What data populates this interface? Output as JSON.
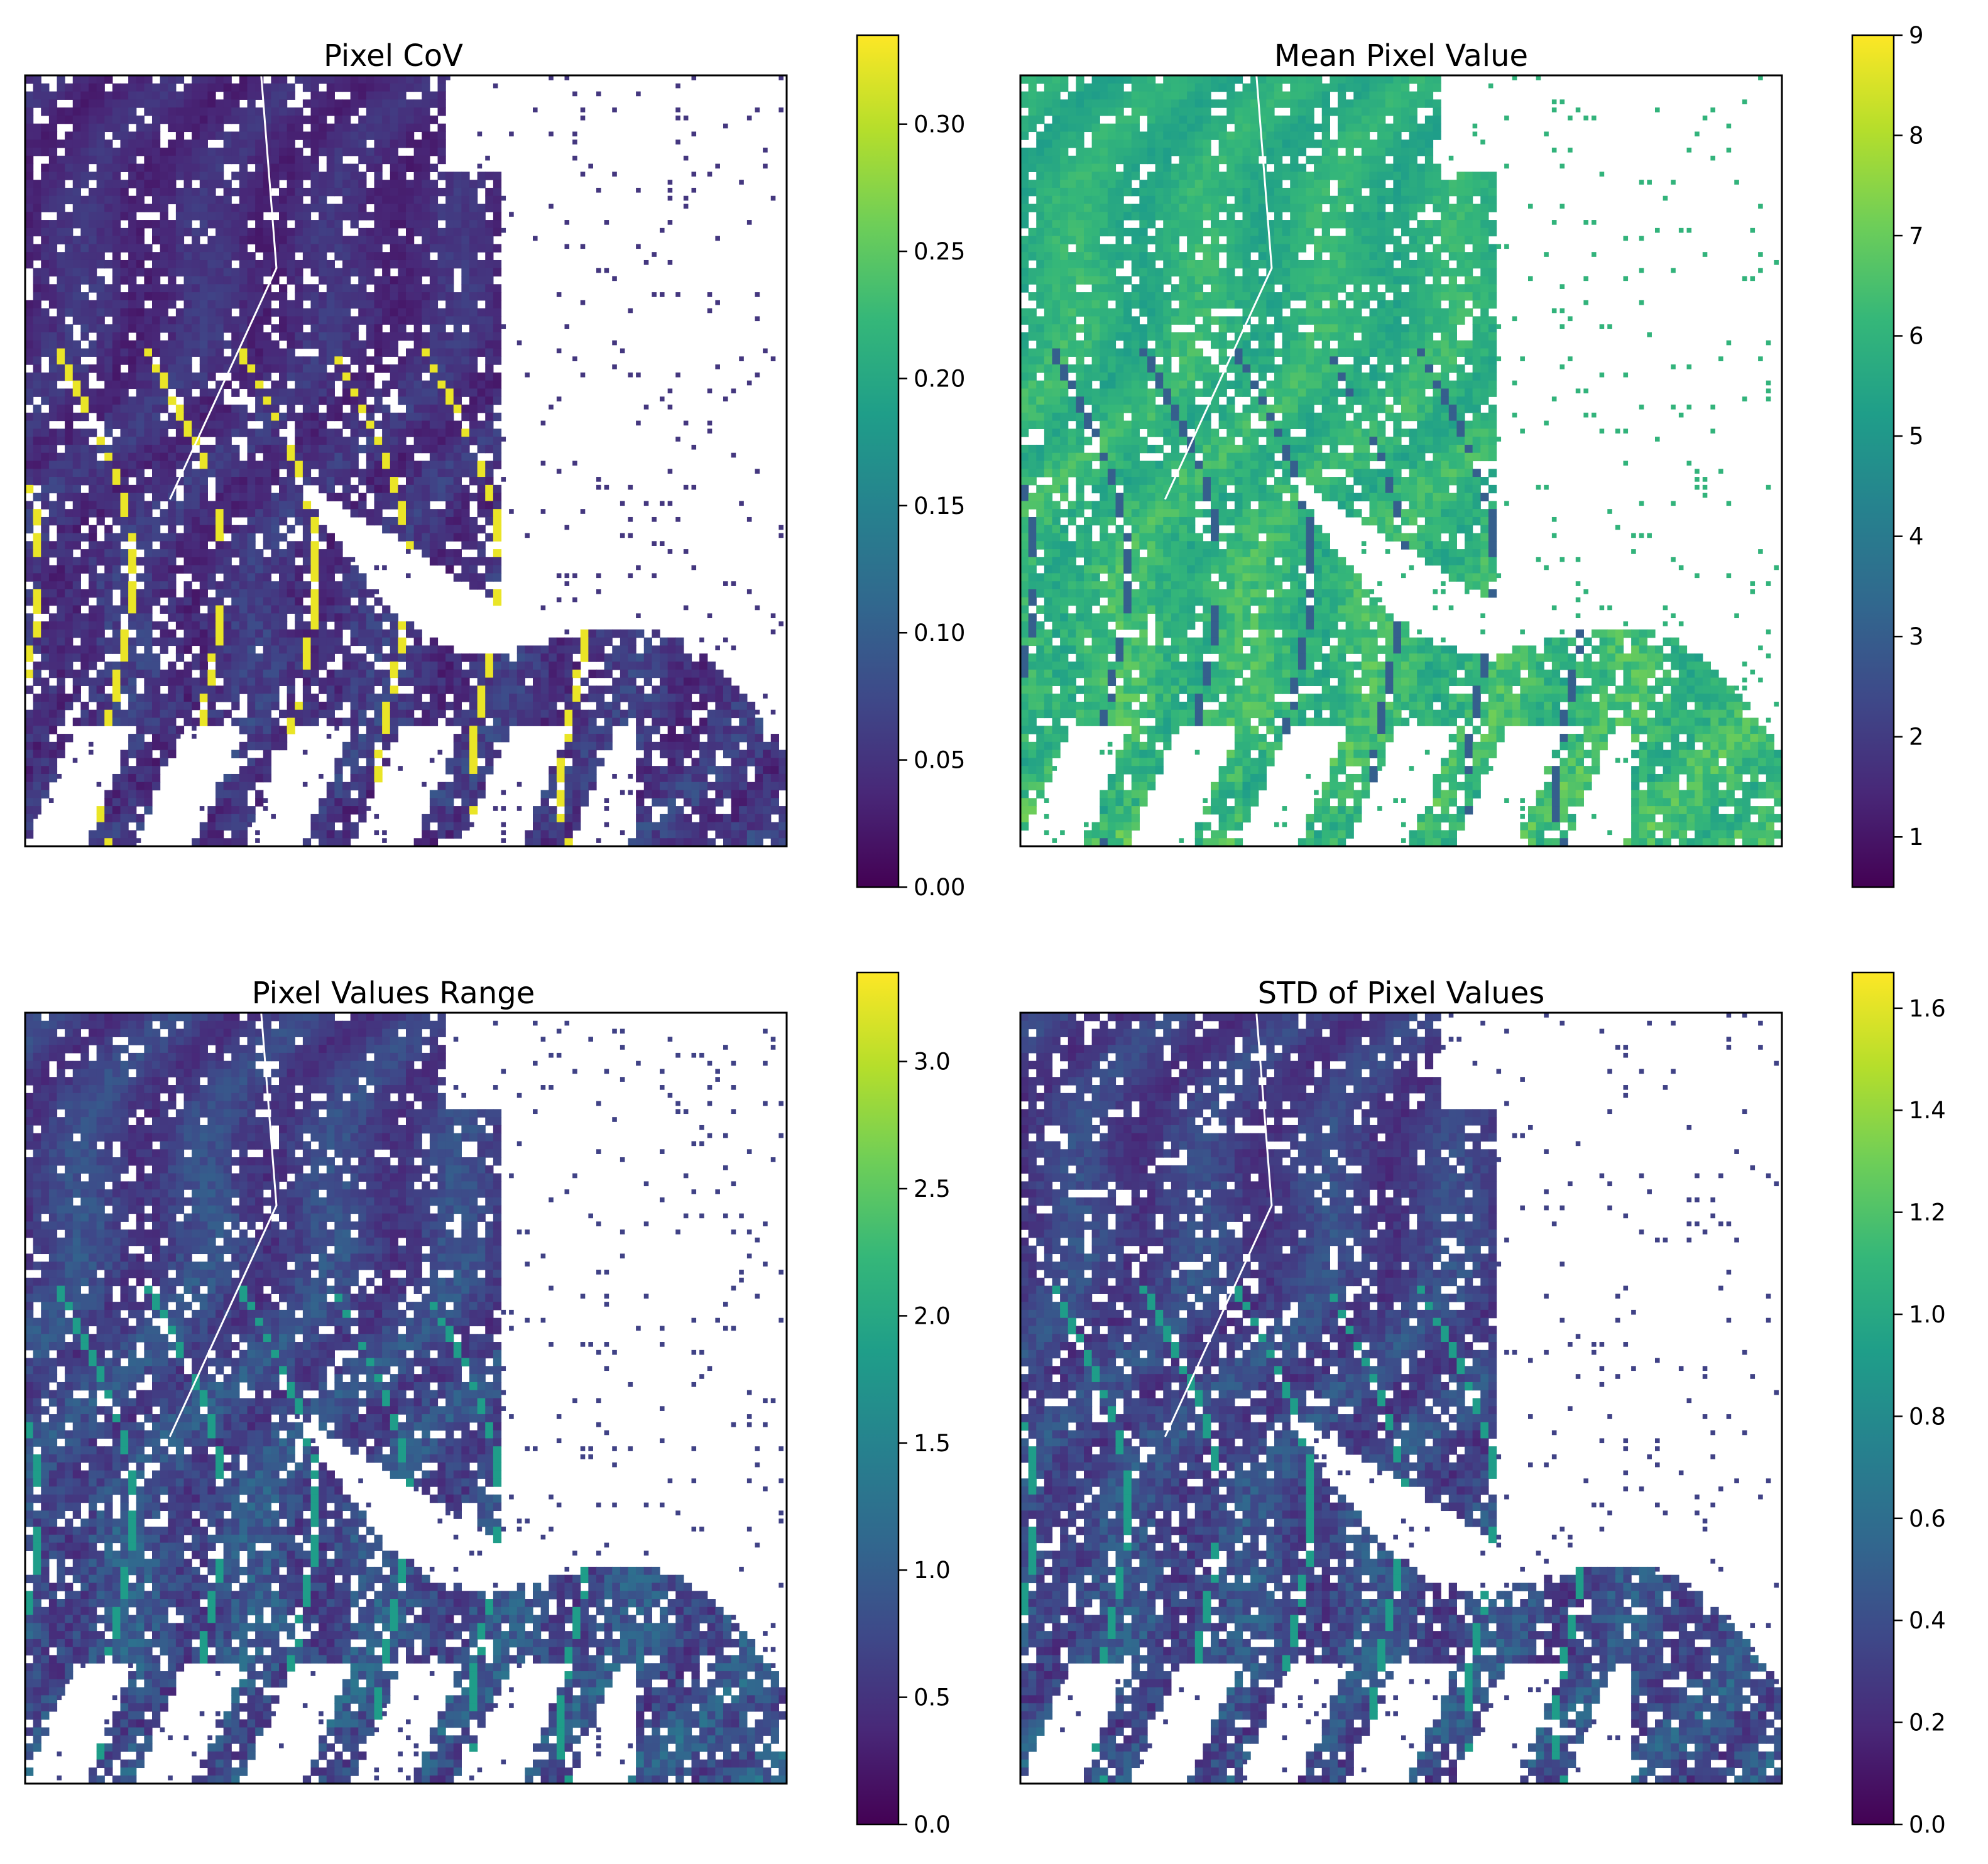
{
  "colormap": {
    "name": "viridis",
    "stops": [
      "#440154",
      "#482878",
      "#3e4989",
      "#31688e",
      "#26828e",
      "#1f9e89",
      "#35b779",
      "#6ece58",
      "#b5de2b",
      "#fde725"
    ]
  },
  "map_colors": {
    "nodata": "#ffffff",
    "frame": "#000000"
  },
  "chart_data": [
    {
      "type": "heatmap",
      "title": "Pixel CoV",
      "colorbar": {
        "vmin": 0.0,
        "vmax": 0.335,
        "ticks": [
          0.0,
          0.05,
          0.1,
          0.15,
          0.2,
          0.25,
          0.3
        ],
        "tick_labels": [
          "0.00",
          "0.05",
          "0.10",
          "0.15",
          "0.20",
          "0.25",
          "0.30"
        ]
      },
      "xticks": [],
      "yticks": []
    },
    {
      "type": "heatmap",
      "title": "Mean Pixel Value",
      "colorbar": {
        "vmin": 0.5,
        "vmax": 9.0,
        "ticks": [
          1,
          2,
          3,
          4,
          5,
          6,
          7,
          8,
          9
        ],
        "tick_labels": [
          "1",
          "2",
          "3",
          "4",
          "5",
          "6",
          "7",
          "8",
          "9"
        ]
      },
      "xticks": [],
      "yticks": []
    },
    {
      "type": "heatmap",
      "title": "Pixel Values Range",
      "colorbar": {
        "vmin": 0.0,
        "vmax": 3.35,
        "ticks": [
          0.0,
          0.5,
          1.0,
          1.5,
          2.0,
          2.5,
          3.0
        ],
        "tick_labels": [
          "0.0",
          "0.5",
          "1.0",
          "1.5",
          "2.0",
          "2.5",
          "3.0"
        ]
      },
      "xticks": [],
      "yticks": []
    },
    {
      "type": "heatmap",
      "title": "STD of Pixel Values",
      "colorbar": {
        "vmin": 0.0,
        "vmax": 1.67,
        "ticks": [
          0.0,
          0.2,
          0.4,
          0.6,
          0.8,
          1.0,
          1.2,
          1.4,
          1.6
        ],
        "tick_labels": [
          "0.0",
          "0.2",
          "0.4",
          "0.6",
          "0.8",
          "1.0",
          "1.2",
          "1.4",
          "1.6"
        ]
      },
      "xticks": [],
      "yticks": []
    }
  ]
}
